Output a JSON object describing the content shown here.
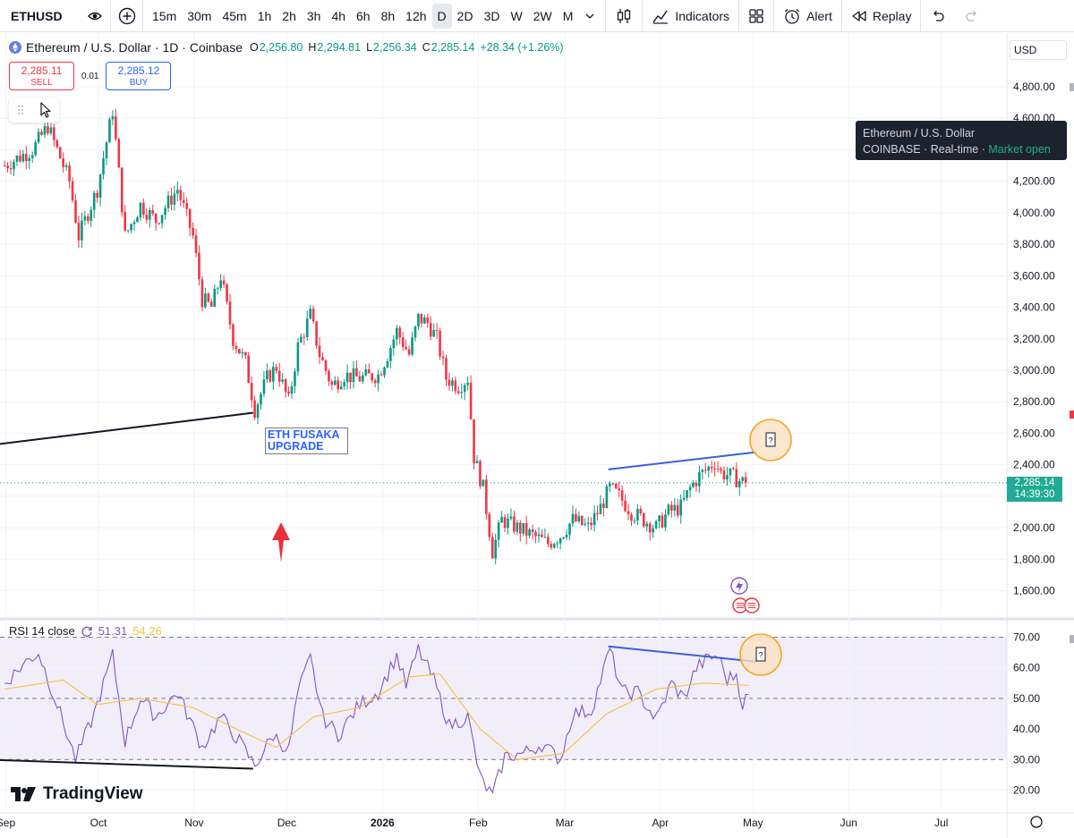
{
  "toolbar": {
    "symbol": "ETHUSD",
    "timeframes": [
      "15m",
      "30m",
      "45m",
      "1h",
      "2h",
      "3h",
      "4h",
      "6h",
      "8h",
      "12h",
      "D",
      "2D",
      "3D",
      "W",
      "2W",
      "M"
    ],
    "active_timeframe": "D",
    "indicators_label": "Indicators",
    "alert_label": "Alert",
    "replay_label": "Replay"
  },
  "legend": {
    "title": "Ethereum / U.S. Dollar · 1D · Coinbase",
    "open_key": "O",
    "open": "2,256.80",
    "high_key": "H",
    "high": "2,294.81",
    "low_key": "L",
    "low": "2,256.34",
    "close_key": "C",
    "close": "2,285.14",
    "change": "+28.34 (+1.26%)"
  },
  "trade": {
    "sell_price": "2,285.11",
    "sell_label": "SELL",
    "spread": "0.01",
    "buy_price": "2,285.12",
    "buy_label": "BUY"
  },
  "tooltip": {
    "name": "Ethereum / U.S. Dollar",
    "exchange": "COINBASE",
    "feed": "Real-time",
    "status": "Market open"
  },
  "currency": "USD",
  "last_price": {
    "price": "2,285.14",
    "countdown": "14:39:30"
  },
  "annotation": {
    "line1": "ETH FUSAKA",
    "line2": "UPGRADE"
  },
  "rsi_legend": {
    "name": "RSI 14 close",
    "rsi_value": "51.31",
    "ma_value": "54.26"
  },
  "logo": "TradingView",
  "colors": {
    "up": "#089981",
    "down": "#f23645",
    "rsi": "#7e57c2",
    "rsi_ma": "#f5c142",
    "trend": "#3c5fd9"
  },
  "chart_data": [
    {
      "type": "candlestick",
      "title": "Ethereum / U.S. Dollar · 1D · Coinbase",
      "y_unit": "USD",
      "ylim": [
        1500,
        4900
      ],
      "y_ticks": [
        "4,800.00",
        "4,600.00",
        "4,400.00",
        "4,200.00",
        "4,000.00",
        "3,800.00",
        "3,600.00",
        "3,400.00",
        "3,200.00",
        "3,000.00",
        "2,800.00",
        "2,600.00",
        "2,400.00",
        "2,200.00",
        "2,000.00",
        "1,800.00",
        "1,600.00"
      ],
      "x_ticks": [
        "Sep",
        "Oct",
        "Nov",
        "Dec",
        "2026",
        "Feb",
        "Mar",
        "Apr",
        "May",
        "Jun",
        "Jul"
      ],
      "series_close_approx": [
        {
          "date": "2025-09-01",
          "close": 4300
        },
        {
          "date": "2025-09-10",
          "close": 4400
        },
        {
          "date": "2025-09-15",
          "close": 4550
        },
        {
          "date": "2025-09-22",
          "close": 4200
        },
        {
          "date": "2025-09-25",
          "close": 3850
        },
        {
          "date": "2025-10-01",
          "close": 4150
        },
        {
          "date": "2025-10-06",
          "close": 4650
        },
        {
          "date": "2025-10-10",
          "close": 3850
        },
        {
          "date": "2025-10-15",
          "close": 4050
        },
        {
          "date": "2025-10-20",
          "close": 3950
        },
        {
          "date": "2025-10-27",
          "close": 4150
        },
        {
          "date": "2025-11-01",
          "close": 3850
        },
        {
          "date": "2025-11-04",
          "close": 3450
        },
        {
          "date": "2025-11-07",
          "close": 3400
        },
        {
          "date": "2025-11-10",
          "close": 3600
        },
        {
          "date": "2025-11-14",
          "close": 3200
        },
        {
          "date": "2025-11-18",
          "close": 3050
        },
        {
          "date": "2025-11-21",
          "close": 2750
        },
        {
          "date": "2025-11-25",
          "close": 2950
        },
        {
          "date": "2025-11-28",
          "close": 3020
        },
        {
          "date": "2025-12-02",
          "close": 2800
        },
        {
          "date": "2025-12-05",
          "close": 3150
        },
        {
          "date": "2025-12-09",
          "close": 3350
        },
        {
          "date": "2025-12-12",
          "close": 3100
        },
        {
          "date": "2025-12-16",
          "close": 2900
        },
        {
          "date": "2025-12-20",
          "close": 2970
        },
        {
          "date": "2025-12-25",
          "close": 2950
        },
        {
          "date": "2025-12-31",
          "close": 2970
        },
        {
          "date": "2026-01-03",
          "close": 3100
        },
        {
          "date": "2026-01-06",
          "close": 3250
        },
        {
          "date": "2026-01-10",
          "close": 3100
        },
        {
          "date": "2026-01-13",
          "close": 3330
        },
        {
          "date": "2026-01-16",
          "close": 3300
        },
        {
          "date": "2026-01-19",
          "close": 3200
        },
        {
          "date": "2026-01-22",
          "close": 2950
        },
        {
          "date": "2026-01-26",
          "close": 2900
        },
        {
          "date": "2026-01-29",
          "close": 2950
        },
        {
          "date": "2026-01-31",
          "close": 2450
        },
        {
          "date": "2026-02-03",
          "close": 2250
        },
        {
          "date": "2026-02-06",
          "close": 1850
        },
        {
          "date": "2026-02-09",
          "close": 2050
        },
        {
          "date": "2026-02-14",
          "close": 2000
        },
        {
          "date": "2026-02-19",
          "close": 1950
        },
        {
          "date": "2026-02-24",
          "close": 1900
        },
        {
          "date": "2026-02-28",
          "close": 1950
        },
        {
          "date": "2026-03-04",
          "close": 2050
        },
        {
          "date": "2026-03-09",
          "close": 2000
        },
        {
          "date": "2026-03-13",
          "close": 2130
        },
        {
          "date": "2026-03-16",
          "close": 2250
        },
        {
          "date": "2026-03-19",
          "close": 2200
        },
        {
          "date": "2026-03-23",
          "close": 2100
        },
        {
          "date": "2026-03-27",
          "close": 2050
        },
        {
          "date": "2026-03-31",
          "close": 2000
        },
        {
          "date": "2026-04-04",
          "close": 2100
        },
        {
          "date": "2026-04-08",
          "close": 2130
        },
        {
          "date": "2026-04-11",
          "close": 2250
        },
        {
          "date": "2026-04-14",
          "close": 2330
        },
        {
          "date": "2026-04-17",
          "close": 2380
        },
        {
          "date": "2026-04-19",
          "close": 2420
        },
        {
          "date": "2026-04-21",
          "close": 2350
        },
        {
          "date": "2026-04-24",
          "close": 2330
        },
        {
          "date": "2026-04-27",
          "close": 2300
        },
        {
          "date": "2026-04-29",
          "close": 2285
        }
      ],
      "last_close": 2285.14,
      "trendlines": [
        {
          "from": {
            "date": "2025-08-26",
            "price": 2520
          },
          "to": {
            "date": "2025-11-21",
            "price": 2730
          }
        },
        {
          "from": {
            "date": "2026-03-16",
            "price": 2370
          },
          "to": {
            "date": "2026-05-03",
            "price": 2480
          }
        }
      ]
    },
    {
      "type": "line",
      "title": "RSI 14 close",
      "ylim": [
        15,
        75
      ],
      "y_ticks": [
        "70.00",
        "60.00",
        "50.00",
        "40.00",
        "30.00",
        "20.00"
      ],
      "bands": [
        30,
        50,
        70
      ],
      "series": [
        {
          "name": "RSI 14 close",
          "values_approx": [
            {
              "date": "2025-09-01",
              "value": 55
            },
            {
              "date": "2025-09-08",
              "value": 62
            },
            {
              "date": "2025-09-12",
              "value": 65
            },
            {
              "date": "2025-09-18",
              "value": 48
            },
            {
              "date": "2025-09-24",
              "value": 30
            },
            {
              "date": "2025-09-30",
              "value": 45
            },
            {
              "date": "2025-10-06",
              "value": 64
            },
            {
              "date": "2025-10-10",
              "value": 36
            },
            {
              "date": "2025-10-15",
              "value": 50
            },
            {
              "date": "2025-10-20",
              "value": 44
            },
            {
              "date": "2025-10-27",
              "value": 52
            },
            {
              "date": "2025-11-04",
              "value": 34
            },
            {
              "date": "2025-11-10",
              "value": 44
            },
            {
              "date": "2025-11-16",
              "value": 36
            },
            {
              "date": "2025-11-21",
              "value": 28
            },
            {
              "date": "2025-11-27",
              "value": 38
            },
            {
              "date": "2025-12-02",
              "value": 33
            },
            {
              "date": "2025-12-05",
              "value": 52
            },
            {
              "date": "2025-12-09",
              "value": 63
            },
            {
              "date": "2025-12-13",
              "value": 44
            },
            {
              "date": "2025-12-18",
              "value": 38
            },
            {
              "date": "2025-12-25",
              "value": 48
            },
            {
              "date": "2025-12-31",
              "value": 52
            },
            {
              "date": "2026-01-06",
              "value": 64
            },
            {
              "date": "2026-01-09",
              "value": 54
            },
            {
              "date": "2026-01-13",
              "value": 66
            },
            {
              "date": "2026-01-18",
              "value": 56
            },
            {
              "date": "2026-01-23",
              "value": 41
            },
            {
              "date": "2026-01-29",
              "value": 44
            },
            {
              "date": "2026-02-02",
              "value": 24
            },
            {
              "date": "2026-02-06",
              "value": 18
            },
            {
              "date": "2026-02-10",
              "value": 31
            },
            {
              "date": "2026-02-16",
              "value": 32
            },
            {
              "date": "2026-02-22",
              "value": 35
            },
            {
              "date": "2026-02-28",
              "value": 30
            },
            {
              "date": "2026-03-04",
              "value": 45
            },
            {
              "date": "2026-03-10",
              "value": 46
            },
            {
              "date": "2026-03-16",
              "value": 66
            },
            {
              "date": "2026-03-20",
              "value": 52
            },
            {
              "date": "2026-03-25",
              "value": 52
            },
            {
              "date": "2026-03-31",
              "value": 43
            },
            {
              "date": "2026-04-05",
              "value": 55
            },
            {
              "date": "2026-04-09",
              "value": 50
            },
            {
              "date": "2026-04-13",
              "value": 60
            },
            {
              "date": "2026-04-17",
              "value": 63
            },
            {
              "date": "2026-04-20",
              "value": 64
            },
            {
              "date": "2026-04-23",
              "value": 56
            },
            {
              "date": "2026-04-26",
              "value": 58
            },
            {
              "date": "2026-04-28",
              "value": 48
            },
            {
              "date": "2026-04-30",
              "value": 51.31
            }
          ]
        },
        {
          "name": "MA",
          "values_approx": [
            {
              "date": "2025-09-01",
              "value": 53
            },
            {
              "date": "2025-09-20",
              "value": 56
            },
            {
              "date": "2025-10-01",
              "value": 48
            },
            {
              "date": "2025-10-15",
              "value": 50
            },
            {
              "date": "2025-11-01",
              "value": 47
            },
            {
              "date": "2025-11-15",
              "value": 40
            },
            {
              "date": "2025-11-28",
              "value": 34
            },
            {
              "date": "2025-12-10",
              "value": 44
            },
            {
              "date": "2025-12-25",
              "value": 47
            },
            {
              "date": "2026-01-10",
              "value": 57
            },
            {
              "date": "2026-01-20",
              "value": 58
            },
            {
              "date": "2026-02-02",
              "value": 40
            },
            {
              "date": "2026-02-14",
              "value": 30
            },
            {
              "date": "2026-03-01",
              "value": 32
            },
            {
              "date": "2026-03-15",
              "value": 45
            },
            {
              "date": "2026-03-31",
              "value": 53
            },
            {
              "date": "2026-04-15",
              "value": 55
            },
            {
              "date": "2026-04-30",
              "value": 54.26
            }
          ]
        }
      ],
      "trendlines": [
        {
          "from": {
            "date": "2025-08-26",
            "value": 30
          },
          "to": {
            "date": "2025-11-21",
            "value": 27
          }
        },
        {
          "from": {
            "date": "2026-03-16",
            "value": 67
          },
          "to": {
            "date": "2026-05-03",
            "value": 62
          }
        }
      ]
    }
  ]
}
